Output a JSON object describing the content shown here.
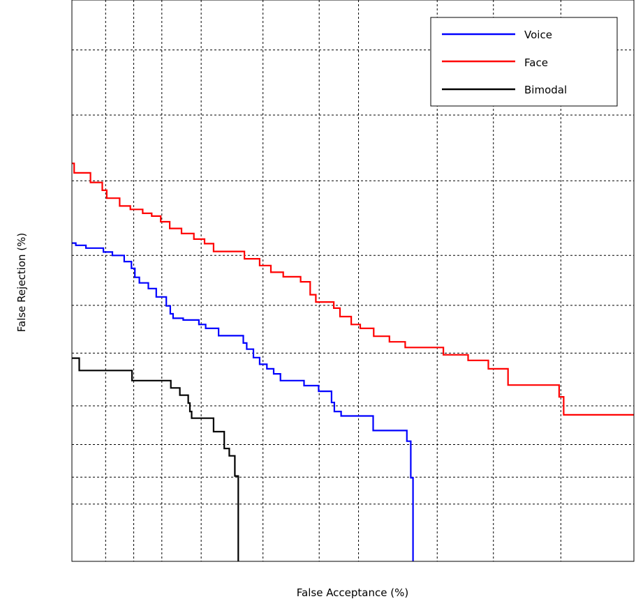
{
  "chart_data": {
    "type": "line",
    "xlabel": "False Acceptance (%)",
    "ylabel": "False Rejection (%)",
    "grid": true,
    "legend_position": "top-right",
    "xlim": [
      0,
      100
    ],
    "ylim": [
      0,
      100
    ],
    "x_gridlines": [
      6,
      11,
      16,
      23,
      34,
      44,
      51,
      65,
      75,
      87
    ],
    "y_gridlines": [
      0,
      10.2,
      15,
      20.8,
      27.7,
      37.1,
      45.6,
      54.5,
      67.8,
      79.5,
      91.1
    ],
    "series": [
      {
        "name": "Voice",
        "color": "#0000ff",
        "points": [
          [
            0,
            56.7
          ],
          [
            0.7,
            56.7
          ],
          [
            0.7,
            56.3
          ],
          [
            2.5,
            56.3
          ],
          [
            2.5,
            55.8
          ],
          [
            5.6,
            55.8
          ],
          [
            5.6,
            55.1
          ],
          [
            7.2,
            55.1
          ],
          [
            7.2,
            54.5
          ],
          [
            9.3,
            54.5
          ],
          [
            9.3,
            53.4
          ],
          [
            10.6,
            53.4
          ],
          [
            10.6,
            52.2
          ],
          [
            11.2,
            52.2
          ],
          [
            11.2,
            50.6
          ],
          [
            12,
            50.6
          ],
          [
            12,
            49.6
          ],
          [
            13.6,
            49.6
          ],
          [
            13.6,
            48.6
          ],
          [
            15,
            48.6
          ],
          [
            15,
            47.1
          ],
          [
            16.8,
            47.1
          ],
          [
            16.8,
            45.5
          ],
          [
            17.5,
            45.5
          ],
          [
            17.5,
            44.1
          ],
          [
            18,
            44.1
          ],
          [
            18,
            43.3
          ],
          [
            19.8,
            43.3
          ],
          [
            19.8,
            43
          ],
          [
            22.6,
            43
          ],
          [
            22.6,
            42.2
          ],
          [
            23.8,
            42.2
          ],
          [
            23.8,
            41.5
          ],
          [
            26.1,
            41.5
          ],
          [
            26.1,
            40.2
          ],
          [
            30.5,
            40.2
          ],
          [
            30.5,
            38.9
          ],
          [
            31.1,
            38.9
          ],
          [
            31.1,
            37.8
          ],
          [
            32.3,
            37.8
          ],
          [
            32.3,
            36.3
          ],
          [
            33.4,
            36.3
          ],
          [
            33.4,
            35.1
          ],
          [
            34.7,
            35.1
          ],
          [
            34.7,
            34.3
          ],
          [
            35.9,
            34.3
          ],
          [
            35.9,
            33.4
          ],
          [
            37.1,
            33.4
          ],
          [
            37.1,
            32.2
          ],
          [
            41.3,
            32.2
          ],
          [
            41.3,
            31.3
          ],
          [
            43.9,
            31.3
          ],
          [
            43.9,
            30.3
          ],
          [
            46.2,
            30.3
          ],
          [
            46.2,
            28.3
          ],
          [
            46.7,
            28.3
          ],
          [
            46.7,
            26.7
          ],
          [
            47.9,
            26.7
          ],
          [
            47.9,
            25.9
          ],
          [
            53.6,
            25.9
          ],
          [
            53.6,
            23.3
          ],
          [
            59.6,
            23.3
          ],
          [
            59.6,
            21.4
          ],
          [
            60.3,
            21.4
          ],
          [
            60.3,
            14.9
          ],
          [
            60.7,
            14.9
          ],
          [
            60.7,
            0
          ]
        ]
      },
      {
        "name": "Face",
        "color": "#ff0000",
        "points": [
          [
            0,
            70.9
          ],
          [
            0.4,
            70.9
          ],
          [
            0.4,
            69.2
          ],
          [
            3.3,
            69.2
          ],
          [
            3.3,
            67.5
          ],
          [
            5.4,
            67.5
          ],
          [
            5.4,
            66.1
          ],
          [
            6.2,
            66.1
          ],
          [
            6.2,
            64.7
          ],
          [
            8.5,
            64.7
          ],
          [
            8.5,
            63.3
          ],
          [
            10.4,
            63.3
          ],
          [
            10.4,
            62.7
          ],
          [
            12.6,
            62.7
          ],
          [
            12.6,
            62
          ],
          [
            14.2,
            62
          ],
          [
            14.2,
            61.5
          ],
          [
            15.8,
            61.5
          ],
          [
            15.8,
            60.5
          ],
          [
            17.4,
            60.5
          ],
          [
            17.4,
            59.3
          ],
          [
            19.5,
            59.3
          ],
          [
            19.5,
            58.4
          ],
          [
            21.7,
            58.4
          ],
          [
            21.7,
            57.4
          ],
          [
            23.6,
            57.4
          ],
          [
            23.6,
            56.6
          ],
          [
            25.2,
            56.6
          ],
          [
            25.2,
            55.2
          ],
          [
            30.7,
            55.2
          ],
          [
            30.7,
            53.9
          ],
          [
            33.4,
            53.9
          ],
          [
            33.4,
            52.7
          ],
          [
            35.4,
            52.7
          ],
          [
            35.4,
            51.5
          ],
          [
            37.6,
            51.5
          ],
          [
            37.6,
            50.7
          ],
          [
            40.7,
            50.7
          ],
          [
            40.7,
            49.8
          ],
          [
            42.4,
            49.8
          ],
          [
            42.4,
            47.5
          ],
          [
            43.4,
            47.5
          ],
          [
            43.4,
            46.2
          ],
          [
            46.6,
            46.2
          ],
          [
            46.6,
            45.1
          ],
          [
            47.7,
            45.1
          ],
          [
            47.7,
            43.6
          ],
          [
            49.7,
            43.6
          ],
          [
            49.7,
            42.2
          ],
          [
            51.3,
            42.2
          ],
          [
            51.3,
            41.5
          ],
          [
            53.7,
            41.5
          ],
          [
            53.7,
            40.1
          ],
          [
            56.5,
            40.1
          ],
          [
            56.5,
            39.1
          ],
          [
            59.3,
            39.1
          ],
          [
            59.3,
            38.1
          ],
          [
            66.1,
            38.1
          ],
          [
            66.1,
            36.8
          ],
          [
            70.5,
            36.8
          ],
          [
            70.5,
            35.8
          ],
          [
            74.1,
            35.8
          ],
          [
            74.1,
            34.3
          ],
          [
            77.6,
            34.3
          ],
          [
            77.6,
            31.4
          ],
          [
            86.7,
            31.4
          ],
          [
            86.7,
            29.3
          ],
          [
            87.5,
            29.3
          ],
          [
            87.5,
            26.1
          ],
          [
            100,
            26.1
          ]
        ]
      },
      {
        "name": "Bimodal",
        "color": "#000000",
        "points": [
          [
            0,
            36.2
          ],
          [
            1.3,
            36.2
          ],
          [
            1.3,
            34
          ],
          [
            10.7,
            34
          ],
          [
            10.7,
            32.2
          ],
          [
            17.6,
            32.2
          ],
          [
            17.6,
            30.9
          ],
          [
            19.2,
            30.9
          ],
          [
            19.2,
            29.6
          ],
          [
            20.7,
            29.6
          ],
          [
            20.7,
            28.2
          ],
          [
            21,
            28.2
          ],
          [
            21,
            26.7
          ],
          [
            21.3,
            26.7
          ],
          [
            21.3,
            25.5
          ],
          [
            25.2,
            25.5
          ],
          [
            25.2,
            23.1
          ],
          [
            27.1,
            23.1
          ],
          [
            27.1,
            20.1
          ],
          [
            28,
            20.1
          ],
          [
            28,
            18.8
          ],
          [
            29,
            18.8
          ],
          [
            29,
            15.2
          ],
          [
            29.6,
            15.2
          ],
          [
            29.6,
            0
          ]
        ]
      }
    ]
  }
}
